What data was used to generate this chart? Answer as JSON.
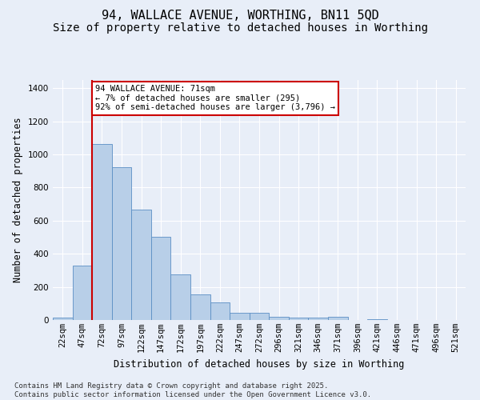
{
  "title": "94, WALLACE AVENUE, WORTHING, BN11 5QD",
  "subtitle": "Size of property relative to detached houses in Worthing",
  "xlabel": "Distribution of detached houses by size in Worthing",
  "ylabel": "Number of detached properties",
  "categories": [
    "22sqm",
    "47sqm",
    "72sqm",
    "97sqm",
    "122sqm",
    "147sqm",
    "172sqm",
    "197sqm",
    "222sqm",
    "247sqm",
    "272sqm",
    "296sqm",
    "321sqm",
    "346sqm",
    "371sqm",
    "396sqm",
    "421sqm",
    "446sqm",
    "471sqm",
    "496sqm",
    "521sqm"
  ],
  "values": [
    15,
    330,
    1065,
    925,
    665,
    505,
    275,
    155,
    105,
    45,
    45,
    20,
    15,
    15,
    20,
    0,
    5,
    0,
    0,
    0,
    0
  ],
  "bar_color": "#b8cfe8",
  "bar_edge_color": "#5b8ec4",
  "background_color": "#e8eef8",
  "grid_color": "#ffffff",
  "vline_index": 2,
  "vline_color": "#cc0000",
  "annotation_text": "94 WALLACE AVENUE: 71sqm\n← 7% of detached houses are smaller (295)\n92% of semi-detached houses are larger (3,796) →",
  "annotation_box_color": "#ffffff",
  "annotation_box_edge_color": "#cc0000",
  "ylim": [
    0,
    1450
  ],
  "yticks": [
    0,
    200,
    400,
    600,
    800,
    1000,
    1200,
    1400
  ],
  "footer": "Contains HM Land Registry data © Crown copyright and database right 2025.\nContains public sector information licensed under the Open Government Licence v3.0.",
  "title_fontsize": 11,
  "subtitle_fontsize": 10,
  "ylabel_fontsize": 8.5,
  "xlabel_fontsize": 8.5,
  "tick_fontsize": 7.5,
  "annotation_fontsize": 7.5,
  "footer_fontsize": 6.5
}
